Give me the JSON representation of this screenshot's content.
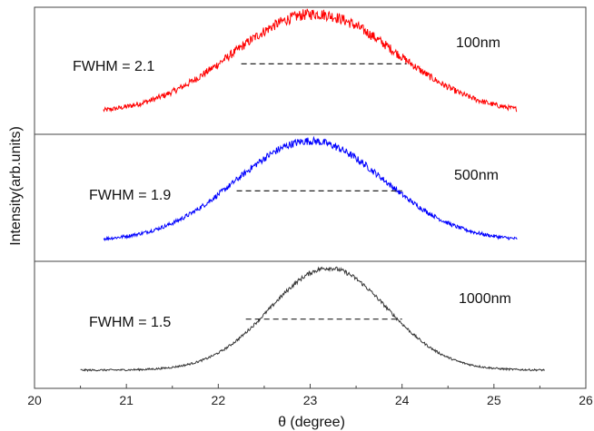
{
  "chart_data": {
    "type": "line",
    "xlabel": "θ (degree)",
    "ylabel": "Intensity(arb.units)",
    "xlim": [
      20,
      26
    ],
    "x_ticks": [
      "20",
      "21",
      "22",
      "23",
      "24",
      "25",
      "26"
    ],
    "grid": false,
    "series": [
      {
        "name": "100nm",
        "color": "#ff0000",
        "fwhm_label": "FWHM = 2.1",
        "x_start": 20.75,
        "x_end": 25.25,
        "center": 23.05,
        "fwhm": 2.1,
        "baseline_fraction": 0.1,
        "noise": 0.05,
        "fwhm_line": [
          22.25,
          24.05
        ]
      },
      {
        "name": "500nm",
        "color": "#0000ff",
        "fwhm_label": "FWHM = 1.9",
        "x_start": 20.75,
        "x_end": 25.25,
        "center": 23.0,
        "fwhm": 1.9,
        "baseline_fraction": 0.1,
        "noise": 0.035,
        "fwhm_line": [
          22.2,
          24.0
        ]
      },
      {
        "name": "1000nm",
        "color": "#333333",
        "fwhm_label": "FWHM = 1.5",
        "x_start": 20.5,
        "x_end": 25.55,
        "center": 23.2,
        "fwhm": 1.5,
        "baseline_fraction": 0.08,
        "noise": 0.02,
        "fwhm_line": [
          22.3,
          24.0
        ]
      }
    ]
  }
}
